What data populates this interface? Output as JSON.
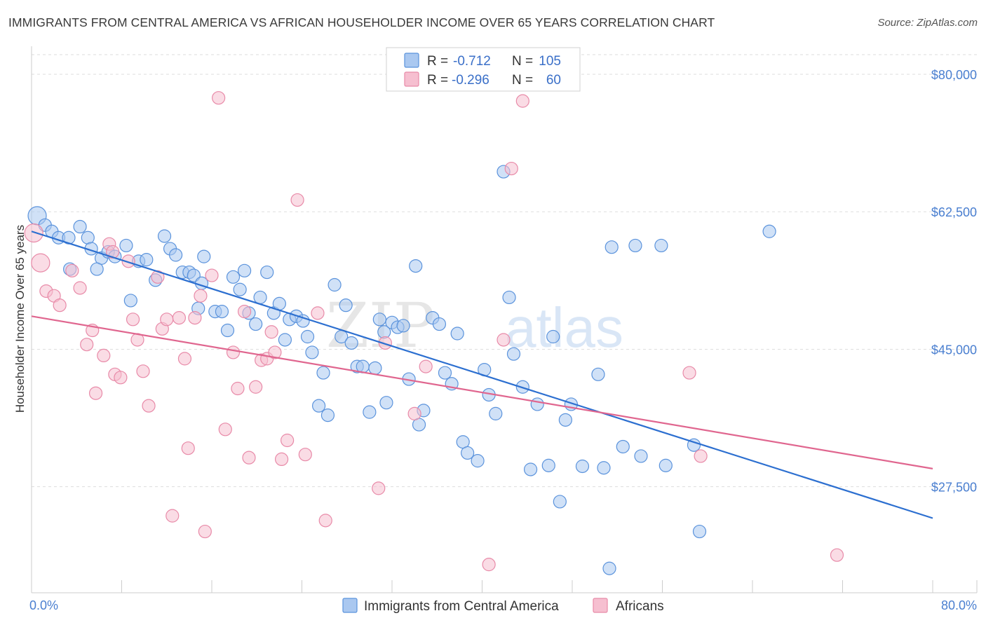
{
  "title": "IMMIGRANTS FROM CENTRAL AMERICA VS AFRICAN HOUSEHOLDER INCOME OVER 65 YEARS CORRELATION CHART",
  "source": "Source: ZipAtlas.com",
  "watermark": {
    "zip": "ZIP",
    "atlas": "atlas"
  },
  "colors": {
    "blue_fill": "#aac8f0",
    "blue_stroke": "#5b93dc",
    "blue_line": "#2c6fd0",
    "pink_fill": "#f6bfd0",
    "pink_stroke": "#e88aa8",
    "pink_line": "#e0668f",
    "axis_text": "#4a7fd0",
    "grid": "#dddddd"
  },
  "legend": {
    "rows": [
      {
        "r_label": "R =",
        "r_value": "-0.712",
        "n_label": "N =",
        "n_value": "105"
      },
      {
        "r_label": "R =",
        "r_value": "-0.296",
        "n_label": "N =",
        "n_value": "60"
      }
    ]
  },
  "chart_data": {
    "type": "scatter",
    "title": "IMMIGRANTS FROM CENTRAL AMERICA VS AFRICAN HOUSEHOLDER INCOME OVER 65 YEARS CORRELATION CHART",
    "xlabel": "",
    "ylabel": "Householder Income Over 65 years",
    "x_tick_labels": [
      "0.0%",
      "80.0%"
    ],
    "y_tick_labels": [
      "$80,000",
      "$62,500",
      "$45,000",
      "$27,500"
    ],
    "y_ticks": [
      80000,
      62500,
      45000,
      27500
    ],
    "xlim": [
      0,
      80
    ],
    "ylim": [
      14000,
      82500
    ],
    "grid": true,
    "legend_position": "top-center",
    "series": [
      {
        "name": "Immigrants from Central America",
        "color": "#5b93dc",
        "r": -0.712,
        "n": 105,
        "trend": {
          "x": [
            0,
            80
          ],
          "y": [
            60000,
            23500
          ]
        },
        "points": [
          {
            "x": 0.5,
            "y": 62000,
            "big": true
          },
          {
            "x": 1.2,
            "y": 60800
          },
          {
            "x": 1.8,
            "y": 60000
          },
          {
            "x": 2.4,
            "y": 59200
          },
          {
            "x": 4.3,
            "y": 60600
          },
          {
            "x": 3.3,
            "y": 59200
          },
          {
            "x": 5.0,
            "y": 59200
          },
          {
            "x": 5.3,
            "y": 57800
          },
          {
            "x": 6.2,
            "y": 56600
          },
          {
            "x": 6.8,
            "y": 57400
          },
          {
            "x": 7.4,
            "y": 56800
          },
          {
            "x": 8.4,
            "y": 58200
          },
          {
            "x": 3.4,
            "y": 55200
          },
          {
            "x": 5.8,
            "y": 55200
          },
          {
            "x": 9.5,
            "y": 56200
          },
          {
            "x": 10.2,
            "y": 56400
          },
          {
            "x": 11.0,
            "y": 53800
          },
          {
            "x": 11.8,
            "y": 59400
          },
          {
            "x": 12.3,
            "y": 57800
          },
          {
            "x": 12.8,
            "y": 57000
          },
          {
            "x": 13.4,
            "y": 54800
          },
          {
            "x": 14.0,
            "y": 54800
          },
          {
            "x": 14.4,
            "y": 54400
          },
          {
            "x": 15.3,
            "y": 56800
          },
          {
            "x": 15.1,
            "y": 53400
          },
          {
            "x": 8.8,
            "y": 51200
          },
          {
            "x": 14.8,
            "y": 50200
          },
          {
            "x": 16.3,
            "y": 49800
          },
          {
            "x": 16.9,
            "y": 49800
          },
          {
            "x": 17.4,
            "y": 47400
          },
          {
            "x": 17.9,
            "y": 54200
          },
          {
            "x": 18.5,
            "y": 52600
          },
          {
            "x": 18.9,
            "y": 55000
          },
          {
            "x": 19.3,
            "y": 49600
          },
          {
            "x": 19.9,
            "y": 48200
          },
          {
            "x": 20.3,
            "y": 51600
          },
          {
            "x": 20.9,
            "y": 54800
          },
          {
            "x": 21.5,
            "y": 49600
          },
          {
            "x": 22.0,
            "y": 50800
          },
          {
            "x": 22.5,
            "y": 46200
          },
          {
            "x": 22.9,
            "y": 48800
          },
          {
            "x": 23.5,
            "y": 49200
          },
          {
            "x": 24.1,
            "y": 48600
          },
          {
            "x": 24.5,
            "y": 46600
          },
          {
            "x": 24.9,
            "y": 44600
          },
          {
            "x": 25.5,
            "y": 37800
          },
          {
            "x": 25.9,
            "y": 42000
          },
          {
            "x": 26.3,
            "y": 36600
          },
          {
            "x": 26.9,
            "y": 53200
          },
          {
            "x": 27.5,
            "y": 46600
          },
          {
            "x": 27.9,
            "y": 50600
          },
          {
            "x": 28.4,
            "y": 45800
          },
          {
            "x": 28.9,
            "y": 42800
          },
          {
            "x": 29.4,
            "y": 42800
          },
          {
            "x": 30.0,
            "y": 37000
          },
          {
            "x": 30.5,
            "y": 42600
          },
          {
            "x": 30.9,
            "y": 48800
          },
          {
            "x": 31.3,
            "y": 47200
          },
          {
            "x": 31.5,
            "y": 38200
          },
          {
            "x": 32.0,
            "y": 48400
          },
          {
            "x": 32.5,
            "y": 47800
          },
          {
            "x": 33.0,
            "y": 48000
          },
          {
            "x": 33.5,
            "y": 41200
          },
          {
            "x": 34.1,
            "y": 55600
          },
          {
            "x": 34.4,
            "y": 35400
          },
          {
            "x": 34.8,
            "y": 37200
          },
          {
            "x": 35.6,
            "y": 49000
          },
          {
            "x": 36.2,
            "y": 48200
          },
          {
            "x": 36.7,
            "y": 42000
          },
          {
            "x": 37.3,
            "y": 40600
          },
          {
            "x": 37.8,
            "y": 47000
          },
          {
            "x": 38.3,
            "y": 33200
          },
          {
            "x": 38.7,
            "y": 31800
          },
          {
            "x": 39.6,
            "y": 30800
          },
          {
            "x": 40.2,
            "y": 42400
          },
          {
            "x": 40.6,
            "y": 39200
          },
          {
            "x": 41.2,
            "y": 36800
          },
          {
            "x": 41.9,
            "y": 67600
          },
          {
            "x": 42.4,
            "y": 51600
          },
          {
            "x": 42.8,
            "y": 44400
          },
          {
            "x": 43.6,
            "y": 40200
          },
          {
            "x": 44.3,
            "y": 29700
          },
          {
            "x": 44.9,
            "y": 38000
          },
          {
            "x": 45.9,
            "y": 30200
          },
          {
            "x": 46.3,
            "y": 46600
          },
          {
            "x": 46.9,
            "y": 25600
          },
          {
            "x": 47.4,
            "y": 36000
          },
          {
            "x": 47.9,
            "y": 38000
          },
          {
            "x": 48.9,
            "y": 30100
          },
          {
            "x": 50.3,
            "y": 41800
          },
          {
            "x": 50.8,
            "y": 29900
          },
          {
            "x": 51.3,
            "y": 17100
          },
          {
            "x": 51.5,
            "y": 58000
          },
          {
            "x": 52.5,
            "y": 32600
          },
          {
            "x": 53.6,
            "y": 58200
          },
          {
            "x": 54.1,
            "y": 31400
          },
          {
            "x": 55.9,
            "y": 58200
          },
          {
            "x": 56.3,
            "y": 30200
          },
          {
            "x": 58.8,
            "y": 32800
          },
          {
            "x": 59.3,
            "y": 21800
          },
          {
            "x": 65.5,
            "y": 60000
          }
        ]
      },
      {
        "name": "Africans",
        "color": "#e88aa8",
        "r": -0.296,
        "n": 60,
        "trend": {
          "x": [
            0,
            80
          ],
          "y": [
            49200,
            29800
          ]
        },
        "points": [
          {
            "x": 0.2,
            "y": 59800,
            "big": true
          },
          {
            "x": 0.8,
            "y": 56000,
            "big": true
          },
          {
            "x": 1.3,
            "y": 52400
          },
          {
            "x": 2.0,
            "y": 51800
          },
          {
            "x": 2.5,
            "y": 50600
          },
          {
            "x": 3.6,
            "y": 55000
          },
          {
            "x": 4.3,
            "y": 52800
          },
          {
            "x": 4.9,
            "y": 45600
          },
          {
            "x": 5.4,
            "y": 47400
          },
          {
            "x": 5.7,
            "y": 39400
          },
          {
            "x": 6.4,
            "y": 44200
          },
          {
            "x": 6.9,
            "y": 58400
          },
          {
            "x": 7.2,
            "y": 57400
          },
          {
            "x": 7.4,
            "y": 41800
          },
          {
            "x": 7.9,
            "y": 41400
          },
          {
            "x": 8.6,
            "y": 56200
          },
          {
            "x": 9.0,
            "y": 48800
          },
          {
            "x": 9.4,
            "y": 46200
          },
          {
            "x": 9.9,
            "y": 42200
          },
          {
            "x": 10.4,
            "y": 37800
          },
          {
            "x": 11.2,
            "y": 54200
          },
          {
            "x": 11.6,
            "y": 47600
          },
          {
            "x": 12.0,
            "y": 48800
          },
          {
            "x": 12.5,
            "y": 23800
          },
          {
            "x": 13.1,
            "y": 49000
          },
          {
            "x": 13.6,
            "y": 43800
          },
          {
            "x": 13.9,
            "y": 32400
          },
          {
            "x": 14.5,
            "y": 49000
          },
          {
            "x": 15.0,
            "y": 51800
          },
          {
            "x": 15.4,
            "y": 21800
          },
          {
            "x": 16.0,
            "y": 54400
          },
          {
            "x": 16.6,
            "y": 77000
          },
          {
            "x": 17.2,
            "y": 34800
          },
          {
            "x": 17.9,
            "y": 44600
          },
          {
            "x": 18.3,
            "y": 40000
          },
          {
            "x": 18.9,
            "y": 49800
          },
          {
            "x": 19.3,
            "y": 31200
          },
          {
            "x": 19.9,
            "y": 40200
          },
          {
            "x": 20.4,
            "y": 43600
          },
          {
            "x": 20.9,
            "y": 43800
          },
          {
            "x": 21.3,
            "y": 47200
          },
          {
            "x": 21.6,
            "y": 44600
          },
          {
            "x": 22.2,
            "y": 31000
          },
          {
            "x": 22.7,
            "y": 33400
          },
          {
            "x": 23.6,
            "y": 64000
          },
          {
            "x": 24.3,
            "y": 31600
          },
          {
            "x": 25.4,
            "y": 49600
          },
          {
            "x": 26.1,
            "y": 23200
          },
          {
            "x": 30.8,
            "y": 27300
          },
          {
            "x": 31.4,
            "y": 45800
          },
          {
            "x": 34.0,
            "y": 36800
          },
          {
            "x": 35.0,
            "y": 42800
          },
          {
            "x": 40.6,
            "y": 17600
          },
          {
            "x": 41.9,
            "y": 46200
          },
          {
            "x": 42.6,
            "y": 68000
          },
          {
            "x": 43.6,
            "y": 76600
          },
          {
            "x": 58.4,
            "y": 42000
          },
          {
            "x": 59.4,
            "y": 31400
          },
          {
            "x": 71.5,
            "y": 18800
          }
        ]
      }
    ]
  }
}
